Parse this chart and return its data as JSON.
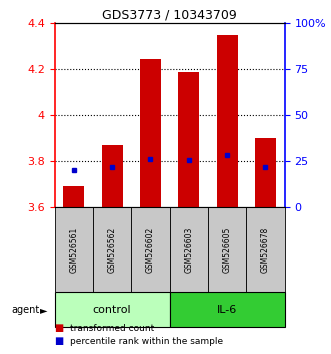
{
  "title": "GDS3773 / 10343709",
  "samples": [
    "GSM526561",
    "GSM526562",
    "GSM526602",
    "GSM526603",
    "GSM526605",
    "GSM526678"
  ],
  "transformed_counts": [
    3.69,
    3.87,
    4.245,
    4.185,
    4.35,
    3.9
  ],
  "percentile_ranks": [
    3.76,
    3.775,
    3.81,
    3.805,
    3.825,
    3.775
  ],
  "bar_bottom": 3.6,
  "ylim": [
    3.6,
    4.4
  ],
  "y2lim": [
    0,
    100
  ],
  "yticks": [
    3.6,
    3.8,
    4.0,
    4.2,
    4.4
  ],
  "ytick_labels": [
    "3.6",
    "3.8",
    "4",
    "4.2",
    "4.4"
  ],
  "y2ticks": [
    0,
    25,
    50,
    75,
    100
  ],
  "y2tick_labels": [
    "0",
    "25",
    "50",
    "75",
    "100%"
  ],
  "bar_color": "#cc0000",
  "dot_color": "#0000cc",
  "control_color": "#bbffbb",
  "il6_color": "#33cc33",
  "sample_bg_color": "#c8c8c8",
  "legend_bar_label": "transformed count",
  "legend_dot_label": "percentile rank within the sample",
  "agent_label": "agent",
  "control_label": "control",
  "il6_label": "IL-6",
  "bar_width": 0.55
}
